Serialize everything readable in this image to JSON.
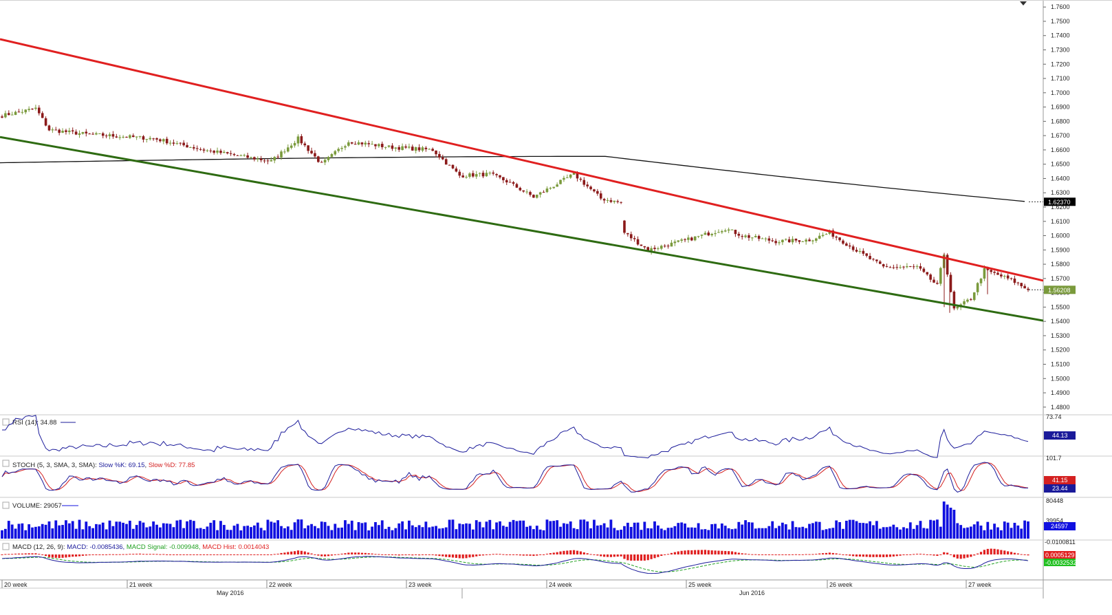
{
  "chart_data": {
    "type": "candlestick",
    "instrument_axis": {
      "price_ticks": [
        "1.7600",
        "1.7500",
        "1.7400",
        "1.7300",
        "1.7200",
        "1.7100",
        "1.7000",
        "1.6900",
        "1.6800",
        "1.6700",
        "1.6600",
        "1.6500",
        "1.6400",
        "1.6300",
        "1.6200",
        "1.6100",
        "1.6000",
        "1.5900",
        "1.5800",
        "1.5700",
        "1.5600",
        "1.5500",
        "1.5400",
        "1.5300",
        "1.5200",
        "1.5100",
        "1.5000",
        "1.4900",
        "1.4800"
      ],
      "ylim": [
        1.4775,
        1.7625
      ]
    },
    "x_ticks": [
      "20 week",
      "21 week",
      "22 week",
      "23 week",
      "24 week",
      "25 week",
      "26 week",
      "27 week"
    ],
    "month_labels": [
      "May 2016",
      "Jun 2016"
    ],
    "price_badges": {
      "ma": {
        "label": "1.62370",
        "value": 1.6237,
        "color": "#000000"
      },
      "last": {
        "label": "1.56208",
        "value": 1.56208,
        "color": "#7a9a3c"
      }
    },
    "trendlines": [
      {
        "name": "",
        "color": "#e02020",
        "points": [
          [
            0,
            1.7375
          ],
          [
            1517,
            1.5685
          ]
        ]
      },
      {
        "name": "",
        "color": "#2e6b12",
        "points": [
          [
            0,
            1.669
          ],
          [
            1517,
            1.5405
          ]
        ]
      }
    ],
    "moving_average_color": "#111111",
    "anchors": [
      {
        "i": 0,
        "c": 1.684
      },
      {
        "i": 10,
        "c": 1.689
      },
      {
        "i": 14,
        "c": 1.674
      },
      {
        "i": 25,
        "c": 1.671
      },
      {
        "i": 45,
        "c": 1.668
      },
      {
        "i": 60,
        "c": 1.66
      },
      {
        "i": 75,
        "c": 1.654
      },
      {
        "i": 80,
        "c": 1.652
      },
      {
        "i": 88,
        "c": 1.668
      },
      {
        "i": 95,
        "c": 1.65
      },
      {
        "i": 103,
        "c": 1.666
      },
      {
        "i": 115,
        "c": 1.662
      },
      {
        "i": 128,
        "c": 1.66
      },
      {
        "i": 136,
        "c": 1.642
      },
      {
        "i": 145,
        "c": 1.643
      },
      {
        "i": 150,
        "c": 1.638
      },
      {
        "i": 158,
        "c": 1.627
      },
      {
        "i": 170,
        "c": 1.643
      },
      {
        "i": 178,
        "c": 1.626
      },
      {
        "i": 184,
        "c": 1.623
      },
      {
        "i": 185,
        "c": 1.602
      },
      {
        "i": 192,
        "c": 1.59
      },
      {
        "i": 205,
        "c": 1.598
      },
      {
        "i": 215,
        "c": 1.605
      },
      {
        "i": 220,
        "c": 1.6
      },
      {
        "i": 230,
        "c": 1.596
      },
      {
        "i": 240,
        "c": 1.597
      },
      {
        "i": 246,
        "c": 1.602
      },
      {
        "i": 255,
        "c": 1.588
      },
      {
        "i": 262,
        "c": 1.578
      },
      {
        "i": 272,
        "c": 1.578
      },
      {
        "i": 278,
        "c": 1.565
      },
      {
        "i": 280,
        "c": 1.587
      },
      {
        "i": 283,
        "c": 1.548
      },
      {
        "i": 288,
        "c": 1.556
      },
      {
        "i": 292,
        "c": 1.576
      },
      {
        "i": 300,
        "c": 1.569
      },
      {
        "i": 305,
        "c": 1.562
      }
    ],
    "indicators": {
      "rsi": {
        "title": "RSI (14): 34.88",
        "value_badge": "44.13",
        "top_tick": "73.74",
        "color": "#1a1a9a"
      },
      "stoch": {
        "title": "STOCH (5, 3, SMA, 3, SMA): ",
        "k_label": "Slow %K: 69.15",
        "d_label": "Slow %D: 77.85",
        "badges": [
          "41.15",
          "23.44"
        ],
        "top_tick": "101.7",
        "k_color": "#1a1a9a",
        "d_color": "#d42020"
      },
      "volume": {
        "title": "VOLUME: 29057",
        "badge": "24597",
        "ticks": [
          "80448",
          "39954"
        ],
        "color": "#1010e0"
      },
      "macd": {
        "title_prefix": "MACD (12, 26, 9): ",
        "macd_label": "MACD: -0.0085436, ",
        "signal_label": "MACD Signal: -0.009948, ",
        "hist_label": "MACD Hist: 0.0014043",
        "badges": [
          "0.0005129",
          "-0.0032532"
        ],
        "tick": "-0.0100811",
        "macd_color": "#1a1a9a",
        "signal_color": "#20a020",
        "hist_color": "#e02020"
      }
    }
  }
}
